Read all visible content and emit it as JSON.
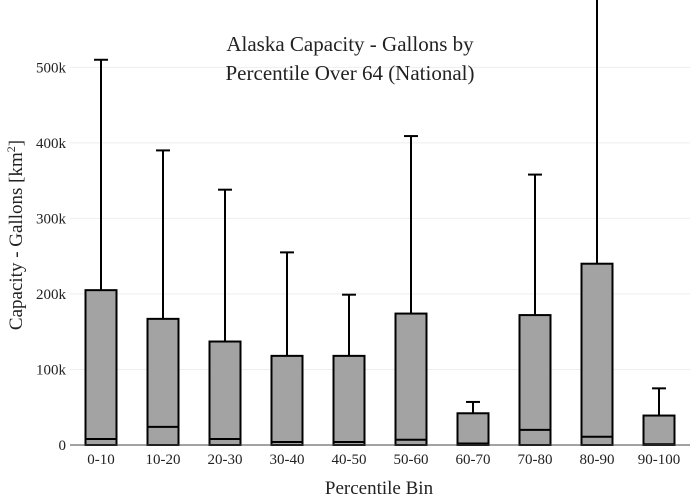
{
  "chart_data": {
    "type": "box",
    "title_lines": [
      "Alaska Capacity - Gallons by",
      "Percentile Over 64 (National)"
    ],
    "xlabel": "Percentile Bin",
    "ylabel": "Capacity - Gallons",
    "ylabel_unit": "[km",
    "ylabel_unit_sup": "2",
    "ylabel_unit_close": "]",
    "categories": [
      "0-10",
      "10-20",
      "20-30",
      "30-40",
      "40-50",
      "50-60",
      "60-70",
      "70-80",
      "80-90",
      "90-100"
    ],
    "boxes": [
      {
        "q1": 0,
        "median": 8000,
        "q3": 205000,
        "upper_whisker": 510000
      },
      {
        "q1": 0,
        "median": 24000,
        "q3": 167000,
        "upper_whisker": 390000
      },
      {
        "q1": 0,
        "median": 8000,
        "q3": 137000,
        "upper_whisker": 338000
      },
      {
        "q1": 0,
        "median": 4000,
        "q3": 118000,
        "upper_whisker": 255000
      },
      {
        "q1": 0,
        "median": 4000,
        "q3": 118000,
        "upper_whisker": 199000
      },
      {
        "q1": 0,
        "median": 7000,
        "q3": 174000,
        "upper_whisker": 409000
      },
      {
        "q1": 0,
        "median": 2000,
        "q3": 42000,
        "upper_whisker": 57000
      },
      {
        "q1": 0,
        "median": 20000,
        "q3": 172000,
        "upper_whisker": 358000
      },
      {
        "q1": 0,
        "median": 11000,
        "q3": 240000,
        "upper_whisker": 600000
      },
      {
        "q1": 0,
        "median": 1000,
        "q3": 39000,
        "upper_whisker": 75000
      }
    ],
    "ylim": [
      0,
      560000
    ],
    "yticks": [
      0,
      100000,
      200000,
      300000,
      400000,
      500000
    ],
    "ytick_labels": [
      "0",
      "100k",
      "200k",
      "300k",
      "400k",
      "500k"
    ],
    "grid": true,
    "colors": {
      "box_fill": "#a3a3a3",
      "line": "#000000",
      "grid": "#eeeeee"
    }
  }
}
